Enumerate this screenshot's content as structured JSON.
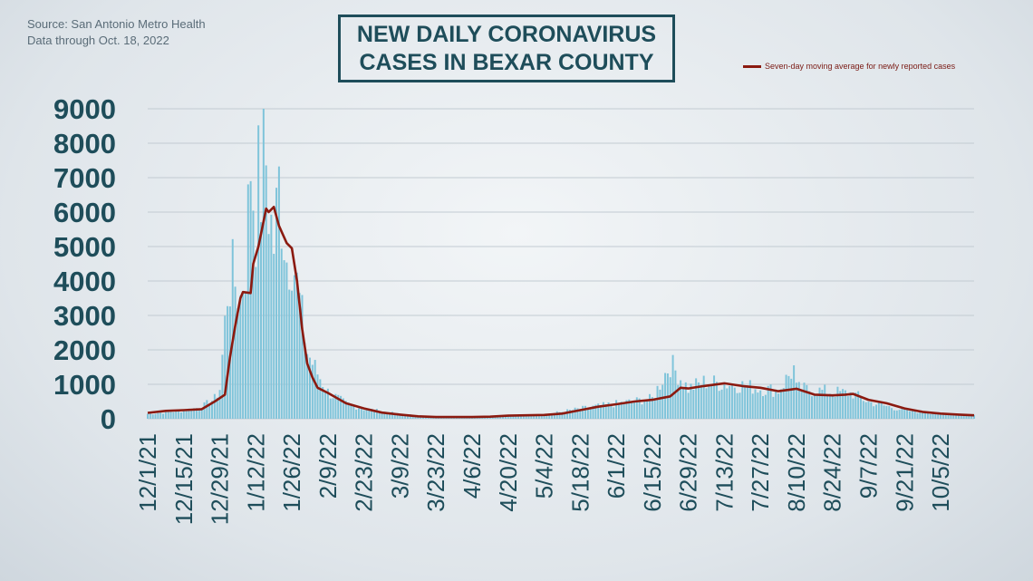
{
  "source": {
    "line1": "Source: San Antonio Metro Health",
    "line2": "Data through Oct. 18, 2022"
  },
  "title": "NEW DAILY CORONAVIRUS\nCASES IN BEXAR COUNTY",
  "legend": {
    "label": "Seven-day moving average for newly reported cases"
  },
  "colors": {
    "bars": "#7fc4da",
    "line": "#8b1a10",
    "text": "#1e4d5a",
    "grid": "#c2cbd2"
  },
  "chart_data": {
    "type": "bar",
    "title": "NEW DAILY CORONAVIRUS CASES IN BEXAR COUNTY",
    "xlabel": "",
    "ylabel": "",
    "ylim": [
      0,
      9000
    ],
    "yticks": [
      0,
      1000,
      2000,
      3000,
      4000,
      5000,
      6000,
      7000,
      8000,
      9000
    ],
    "x_range": [
      "12/1/21",
      "10/18/22"
    ],
    "xticks": [
      "12/1/21",
      "12/15/21",
      "12/29/21",
      "1/12/22",
      "1/26/22",
      "2/9/22",
      "2/23/22",
      "3/9/22",
      "3/23/22",
      "4/6/22",
      "4/20/22",
      "5/4/22",
      "5/18/22",
      "6/1/22",
      "6/15/22",
      "6/29/22",
      "7/13/22",
      "7/27/22",
      "8/10/22",
      "8/24/22",
      "9/7/22",
      "9/21/22",
      "10/5/22"
    ],
    "grid": true,
    "legend_position": "top-right",
    "series": [
      {
        "type": "bar",
        "approx_keypoints": [
          [
            "12/1/21",
            150
          ],
          [
            "12/8/21",
            200
          ],
          [
            "12/15/21",
            250
          ],
          [
            "12/22/21",
            350
          ],
          [
            "12/27/21",
            600
          ],
          [
            "12/29/21",
            900
          ],
          [
            "1/1/22",
            3800
          ],
          [
            "1/3/22",
            4300
          ],
          [
            "1/6/22",
            3600
          ],
          [
            "1/8/22",
            4600
          ],
          [
            "1/10/22",
            7700
          ],
          [
            "1/12/22",
            5800
          ],
          [
            "1/13/22",
            7200
          ],
          [
            "1/14/22",
            6800
          ],
          [
            "1/15/22",
            9000
          ],
          [
            "1/17/22",
            6400
          ],
          [
            "1/19/22",
            5200
          ],
          [
            "1/21/22",
            7000
          ],
          [
            "1/24/22",
            4800
          ],
          [
            "1/26/22",
            5000
          ],
          [
            "1/29/22",
            3500
          ],
          [
            "2/1/22",
            2000
          ],
          [
            "2/4/22",
            1500
          ],
          [
            "2/9/22",
            800
          ],
          [
            "2/16/22",
            450
          ],
          [
            "2/23/22",
            300
          ],
          [
            "3/9/22",
            130
          ],
          [
            "3/23/22",
            60
          ],
          [
            "4/6/22",
            50
          ],
          [
            "4/20/22",
            80
          ],
          [
            "5/4/22",
            120
          ],
          [
            "5/18/22",
            300
          ],
          [
            "6/1/22",
            450
          ],
          [
            "6/15/22",
            600
          ],
          [
            "6/22/22",
            1650
          ],
          [
            "6/29/22",
            900
          ],
          [
            "7/5/22",
            1100
          ],
          [
            "7/13/22",
            1050
          ],
          [
            "7/20/22",
            1000
          ],
          [
            "7/27/22",
            900
          ],
          [
            "8/3/22",
            850
          ],
          [
            "8/9/22",
            1500
          ],
          [
            "8/10/22",
            900
          ],
          [
            "8/24/22",
            800
          ],
          [
            "9/1/22",
            750
          ],
          [
            "9/7/22",
            500
          ],
          [
            "9/21/22",
            250
          ],
          [
            "10/5/22",
            150
          ],
          [
            "10/18/22",
            100
          ]
        ]
      },
      {
        "type": "line",
        "name": "Seven-day moving average for newly reported cases",
        "points": [
          [
            "12/1/21",
            170
          ],
          [
            "12/8/21",
            230
          ],
          [
            "12/15/21",
            250
          ],
          [
            "12/22/21",
            280
          ],
          [
            "12/27/21",
            500
          ],
          [
            "12/31/21",
            700
          ],
          [
            "1/2/22",
            1800
          ],
          [
            "1/4/22",
            2700
          ],
          [
            "1/6/22",
            3500
          ],
          [
            "1/7/22",
            3680
          ],
          [
            "1/10/22",
            3650
          ],
          [
            "1/11/22",
            4500
          ],
          [
            "1/13/22",
            5000
          ],
          [
            "1/16/22",
            6100
          ],
          [
            "1/17/22",
            6000
          ],
          [
            "1/19/22",
            6150
          ],
          [
            "1/21/22",
            5600
          ],
          [
            "1/24/22",
            5100
          ],
          [
            "1/26/22",
            4950
          ],
          [
            "1/28/22",
            4000
          ],
          [
            "1/30/22",
            2600
          ],
          [
            "2/1/22",
            1600
          ],
          [
            "2/3/22",
            1200
          ],
          [
            "2/5/22",
            900
          ],
          [
            "2/9/22",
            750
          ],
          [
            "2/16/22",
            450
          ],
          [
            "2/23/22",
            300
          ],
          [
            "3/2/22",
            180
          ],
          [
            "3/9/22",
            120
          ],
          [
            "3/16/22",
            70
          ],
          [
            "3/23/22",
            50
          ],
          [
            "4/6/22",
            50
          ],
          [
            "4/13/22",
            60
          ],
          [
            "4/20/22",
            90
          ],
          [
            "5/4/22",
            110
          ],
          [
            "5/11/22",
            150
          ],
          [
            "5/18/22",
            250
          ],
          [
            "5/25/22",
            350
          ],
          [
            "6/1/22",
            420
          ],
          [
            "6/8/22",
            500
          ],
          [
            "6/15/22",
            550
          ],
          [
            "6/22/22",
            650
          ],
          [
            "6/26/22",
            900
          ],
          [
            "6/29/22",
            880
          ],
          [
            "7/5/22",
            950
          ],
          [
            "7/13/22",
            1030
          ],
          [
            "7/20/22",
            950
          ],
          [
            "7/27/22",
            900
          ],
          [
            "8/3/22",
            800
          ],
          [
            "8/8/22",
            850
          ],
          [
            "8/10/22",
            870
          ],
          [
            "8/17/22",
            700
          ],
          [
            "8/24/22",
            680
          ],
          [
            "8/29/22",
            700
          ],
          [
            "9/1/22",
            720
          ],
          [
            "9/7/22",
            550
          ],
          [
            "9/14/22",
            450
          ],
          [
            "9/21/22",
            300
          ],
          [
            "9/28/22",
            200
          ],
          [
            "10/5/22",
            150
          ],
          [
            "10/12/22",
            120
          ],
          [
            "10/18/22",
            100
          ]
        ]
      }
    ]
  }
}
